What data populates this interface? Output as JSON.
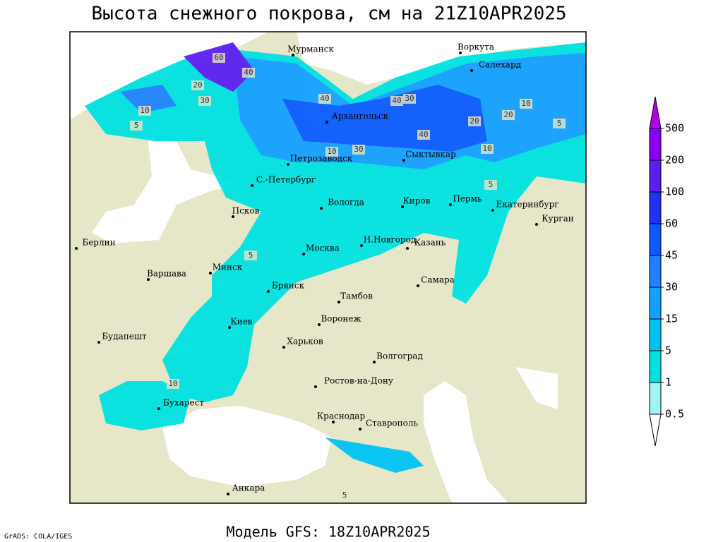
{
  "header": {
    "title": "Высота снежного покрова, см на 21Z10APR2025"
  },
  "footer": {
    "model": "Модель GFS: 18Z10APR2025",
    "credit": "GrADS: COLA/IGES"
  },
  "cities": [
    "Мурманск",
    "Воркута",
    "Салехард",
    "Архангельск",
    "Петрозаводск",
    "Сыктывкар",
    "С.-Петербург",
    "Вологда",
    "Киров",
    "Пермь",
    "Екатеринбург",
    "Курган",
    "Псков",
    "Берлин",
    "Н.Новгород",
    "Москва",
    "Казань",
    "Минск",
    "Варшава",
    "Самара",
    "Брянск",
    "Тамбов",
    "Киев",
    "Воронеж",
    "Будапешт",
    "Харьков",
    "Волгоград",
    "Ростов-на-Дону",
    "Бухарест",
    "Краснодар",
    "Ставрополь",
    "Анкара"
  ],
  "contour_labels": [
    20,
    60,
    40,
    30,
    10,
    5,
    40,
    30,
    40,
    40,
    20,
    30,
    20,
    10,
    5,
    10,
    10,
    5,
    10,
    5,
    5
  ],
  "colorbar": {
    "levels": [
      0.5,
      1,
      5,
      15,
      30,
      45,
      60,
      100,
      200,
      500
    ],
    "colors": [
      "#ffffff",
      "#9ef3f3",
      "#00e1e1",
      "#00c3f5",
      "#14a0ff",
      "#1e82ff",
      "#0a5aff",
      "#1e32f0",
      "#5a1ef0",
      "#8c00f0",
      "#b400e6"
    ]
  }
}
